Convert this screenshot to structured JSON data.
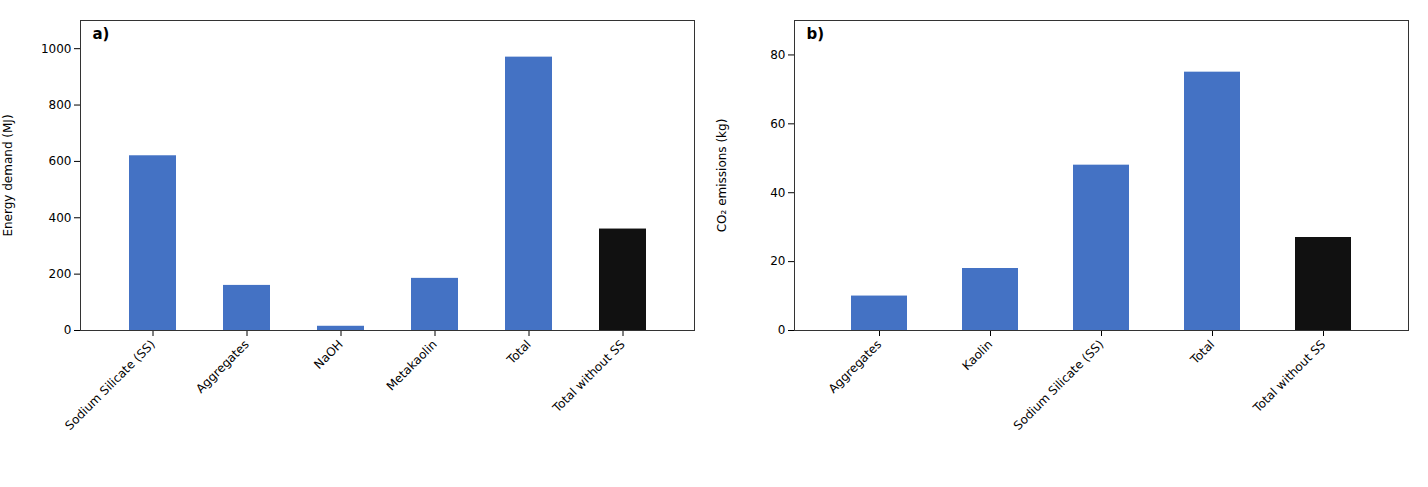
{
  "chart_data": [
    {
      "type": "bar",
      "title": "a)",
      "categories": [
        "Sodium Silicate (SS)",
        "Aggregates",
        "NaOH",
        "Metakaolin",
        "Total",
        "Total without SS"
      ],
      "values": [
        620,
        160,
        15,
        185,
        970,
        360
      ],
      "colors": [
        "#4472C4",
        "#4472C4",
        "#4472C4",
        "#4472C4",
        "#4472C4",
        "#111111"
      ],
      "ylabel": "Energy demand (MJ)",
      "ylim": [
        0,
        1100
      ],
      "yticks": [
        0,
        200,
        400,
        600,
        800,
        1000
      ],
      "grid": false
    },
    {
      "type": "bar",
      "title": "b)",
      "categories": [
        "Aggregates",
        "Kaolin",
        "Sodium Silicate (SS)",
        "Total",
        "Total without SS"
      ],
      "values": [
        10,
        18,
        48,
        75,
        27
      ],
      "colors": [
        "#4472C4",
        "#4472C4",
        "#4472C4",
        "#4472C4",
        "#111111"
      ],
      "ylabel": "CO₂ emissions (kg)",
      "ylim": [
        0,
        90
      ],
      "yticks": [
        0,
        20,
        40,
        60,
        80
      ],
      "grid": false
    }
  ]
}
